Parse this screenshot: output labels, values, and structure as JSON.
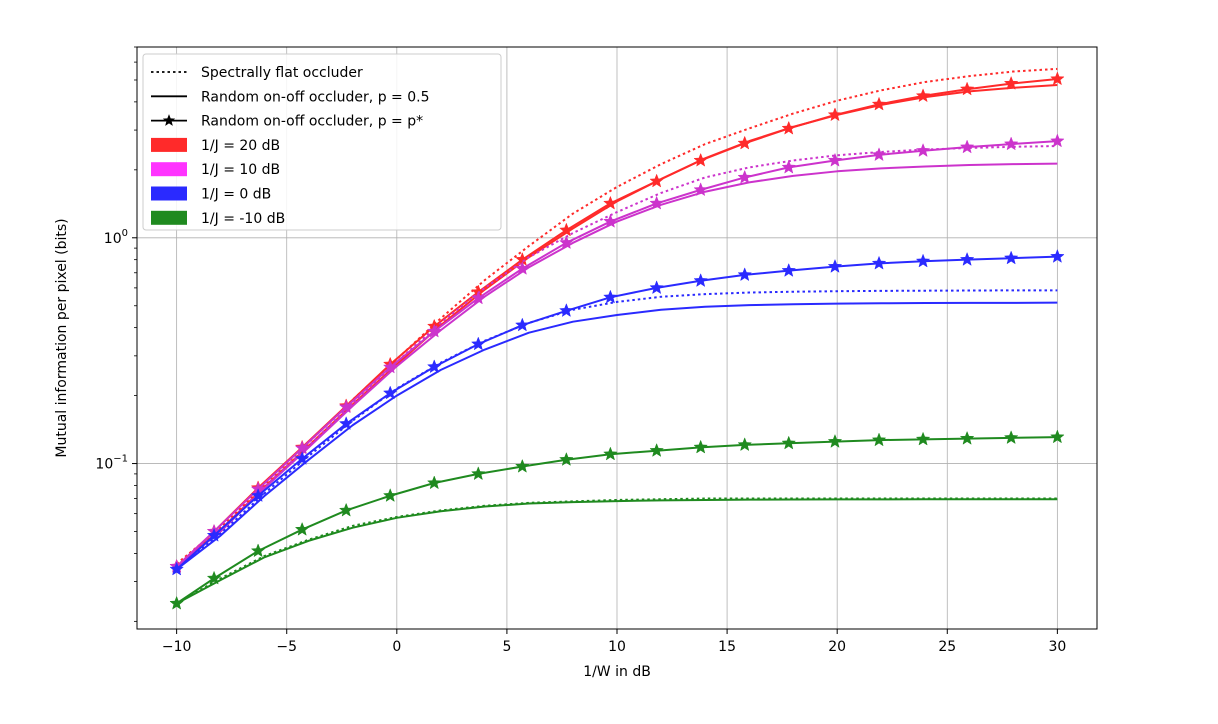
{
  "chart_data": {
    "type": "line",
    "title": "",
    "xlabel": "1/W in dB",
    "ylabel": "Mutual information per pixel (bits)",
    "xlim": [
      -11.8,
      31.8
    ],
    "ylim": [
      0.0185,
      7.0
    ],
    "yscale": "log",
    "grid": true,
    "legend_position": "top-left",
    "x_ticks": [
      -10,
      -5,
      0,
      5,
      10,
      15,
      20,
      25,
      30
    ],
    "x_tick_labels": [
      "−10",
      "−5",
      "0",
      "5",
      "10",
      "15",
      "20",
      "25",
      "30"
    ],
    "y_ticks": [
      0.1,
      1
    ],
    "y_tick_labels": [
      {
        "base": "10",
        "exp": "−1"
      },
      {
        "base": "10",
        "exp": "0"
      }
    ],
    "legend": {
      "styles": [
        {
          "label": "Spectrally flat occluder",
          "style": "dotted"
        },
        {
          "label": "Random on-off occluder, p = 0.5",
          "style": "solid"
        },
        {
          "label": "Random on-off occluder, p = p*",
          "style": "star"
        }
      ],
      "colors": [
        {
          "label": "1/J = 20 dB",
          "color": "#ff2a2a"
        },
        {
          "label": "1/J = 10 dB",
          "color": "#ff33ff"
        },
        {
          "label": "1/J = 0 dB",
          "color": "#2a2aff"
        },
        {
          "label": "1/J = -10 dB",
          "color": "#1f8a1f"
        }
      ]
    },
    "series": [
      {
        "group": "1/J = 20 dB",
        "style": "dotted",
        "color": "#ff2a2a",
        "x": [
          -10,
          -8,
          -6,
          -4,
          -2,
          0,
          2,
          4,
          6,
          8,
          10,
          12,
          14,
          16,
          18,
          20,
          22,
          24,
          26,
          28,
          30
        ],
        "y": [
          0.036,
          0.052,
          0.081,
          0.124,
          0.192,
          0.29,
          0.44,
          0.65,
          0.92,
          1.28,
          1.68,
          2.12,
          2.6,
          3.05,
          3.55,
          4.05,
          4.5,
          4.9,
          5.2,
          5.45,
          5.6
        ]
      },
      {
        "group": "1/J = 20 dB",
        "style": "solid",
        "color": "#ff2a2a",
        "x": [
          -10,
          -8,
          -6,
          -4,
          -2,
          0,
          2,
          4,
          6,
          8,
          10,
          12,
          14,
          16,
          18,
          20,
          22,
          24,
          26,
          28,
          30
        ],
        "y": [
          0.035,
          0.051,
          0.079,
          0.12,
          0.183,
          0.275,
          0.41,
          0.59,
          0.82,
          1.1,
          1.45,
          1.82,
          2.25,
          2.68,
          3.1,
          3.5,
          3.88,
          4.2,
          4.45,
          4.62,
          4.75
        ]
      },
      {
        "group": "1/J = 20 dB",
        "style": "star",
        "color": "#ff2a2a",
        "x": [
          -10,
          -8.3,
          -6.3,
          -4.3,
          -2.3,
          -0.3,
          1.7,
          3.7,
          5.7,
          7.7,
          9.7,
          11.8,
          13.8,
          15.8,
          17.8,
          19.9,
          21.9,
          23.9,
          25.9,
          27.9,
          30
        ],
        "y": [
          0.035,
          0.05,
          0.078,
          0.118,
          0.18,
          0.275,
          0.405,
          0.575,
          0.8,
          1.08,
          1.42,
          1.78,
          2.2,
          2.62,
          3.05,
          3.5,
          3.9,
          4.25,
          4.55,
          4.82,
          5.05
        ]
      },
      {
        "group": "1/J = 10 dB",
        "style": "dotted",
        "color": "#cc33cc",
        "x": [
          -10,
          -8,
          -6,
          -4,
          -2,
          0,
          2,
          4,
          6,
          8,
          10,
          12,
          14,
          16,
          18,
          20,
          22,
          24,
          26,
          28,
          30
        ],
        "y": [
          0.035,
          0.051,
          0.079,
          0.12,
          0.185,
          0.282,
          0.42,
          0.6,
          0.82,
          1.05,
          1.3,
          1.58,
          1.85,
          2.05,
          2.2,
          2.32,
          2.4,
          2.46,
          2.5,
          2.53,
          2.55
        ]
      },
      {
        "group": "1/J = 10 dB",
        "style": "solid",
        "color": "#cc33cc",
        "x": [
          -10,
          -8,
          -6,
          -4,
          -2,
          0,
          2,
          4,
          6,
          8,
          10,
          12,
          14,
          16,
          18,
          20,
          22,
          24,
          26,
          28,
          30
        ],
        "y": [
          0.035,
          0.05,
          0.078,
          0.118,
          0.18,
          0.27,
          0.39,
          0.55,
          0.74,
          0.95,
          1.18,
          1.4,
          1.6,
          1.76,
          1.88,
          1.97,
          2.03,
          2.07,
          2.1,
          2.12,
          2.13
        ]
      },
      {
        "group": "1/J = 10 dB",
        "style": "star",
        "color": "#cc33cc",
        "x": [
          -10,
          -8.3,
          -6.3,
          -4.3,
          -2.3,
          -0.3,
          1.7,
          3.7,
          5.7,
          7.7,
          9.7,
          11.8,
          13.8,
          15.8,
          17.8,
          19.9,
          21.9,
          23.9,
          25.9,
          27.9,
          30
        ],
        "y": [
          0.035,
          0.05,
          0.077,
          0.117,
          0.178,
          0.267,
          0.385,
          0.54,
          0.73,
          0.95,
          1.18,
          1.42,
          1.63,
          1.85,
          2.05,
          2.2,
          2.33,
          2.43,
          2.52,
          2.6,
          2.68
        ]
      },
      {
        "group": "1/J = 0 dB",
        "style": "dotted",
        "color": "#2a2aff",
        "x": [
          -10,
          -8,
          -6,
          -4,
          -2,
          0,
          2,
          4,
          6,
          8,
          10,
          12,
          14,
          16,
          18,
          20,
          22,
          24,
          26,
          28,
          30
        ],
        "y": [
          0.034,
          0.049,
          0.074,
          0.108,
          0.155,
          0.215,
          0.28,
          0.35,
          0.42,
          0.48,
          0.52,
          0.548,
          0.563,
          0.572,
          0.577,
          0.58,
          0.582,
          0.583,
          0.584,
          0.585,
          0.585
        ]
      },
      {
        "group": "1/J = 0 dB",
        "style": "solid",
        "color": "#2a2aff",
        "x": [
          -10,
          -8,
          -6,
          -4,
          -2,
          0,
          2,
          4,
          6,
          8,
          10,
          12,
          14,
          16,
          18,
          20,
          22,
          24,
          26,
          28,
          30
        ],
        "y": [
          0.034,
          0.048,
          0.072,
          0.104,
          0.148,
          0.2,
          0.26,
          0.32,
          0.38,
          0.425,
          0.455,
          0.48,
          0.495,
          0.503,
          0.508,
          0.511,
          0.513,
          0.514,
          0.515,
          0.515,
          0.516
        ]
      },
      {
        "group": "1/J = 0 dB",
        "style": "star",
        "color": "#2a2aff",
        "x": [
          -10,
          -8.3,
          -6.3,
          -4.3,
          -2.3,
          -0.3,
          1.7,
          3.7,
          5.7,
          7.7,
          9.7,
          11.8,
          13.8,
          15.8,
          17.8,
          19.9,
          21.9,
          23.9,
          25.9,
          27.9,
          30
        ],
        "y": [
          0.034,
          0.048,
          0.072,
          0.105,
          0.15,
          0.205,
          0.268,
          0.338,
          0.41,
          0.475,
          0.545,
          0.6,
          0.645,
          0.685,
          0.715,
          0.745,
          0.77,
          0.787,
          0.8,
          0.812,
          0.825
        ]
      },
      {
        "group": "1/J = -10 dB",
        "style": "dotted",
        "color": "#1f8a1f",
        "x": [
          -10,
          -8,
          -6,
          -4,
          -2,
          0,
          2,
          4,
          6,
          8,
          10,
          12,
          14,
          16,
          18,
          20,
          22,
          24,
          26,
          28,
          30
        ],
        "y": [
          0.024,
          0.031,
          0.039,
          0.046,
          0.053,
          0.058,
          0.062,
          0.065,
          0.067,
          0.068,
          0.069,
          0.0695,
          0.07,
          0.07,
          0.07,
          0.07,
          0.07,
          0.07,
          0.07,
          0.07,
          0.07
        ]
      },
      {
        "group": "1/J = -10 dB",
        "style": "solid",
        "color": "#1f8a1f",
        "x": [
          -10,
          -8,
          -6,
          -4,
          -2,
          0,
          2,
          4,
          6,
          8,
          10,
          12,
          14,
          16,
          18,
          20,
          22,
          24,
          26,
          28,
          30
        ],
        "y": [
          0.024,
          0.0305,
          0.0385,
          0.0455,
          0.052,
          0.0575,
          0.0615,
          0.0645,
          0.0665,
          0.0675,
          0.0682,
          0.0687,
          0.069,
          0.0692,
          0.0693,
          0.0694,
          0.0694,
          0.0695,
          0.0695,
          0.0695,
          0.0695
        ]
      },
      {
        "group": "1/J = -10 dB",
        "style": "star",
        "color": "#1f8a1f",
        "x": [
          -10,
          -8.3,
          -6.3,
          -4.3,
          -2.3,
          -0.3,
          1.7,
          3.7,
          5.7,
          7.7,
          9.7,
          11.8,
          13.8,
          15.8,
          17.8,
          19.9,
          21.9,
          23.9,
          25.9,
          27.9,
          30
        ],
        "y": [
          0.024,
          0.031,
          0.041,
          0.051,
          0.062,
          0.072,
          0.082,
          0.09,
          0.097,
          0.104,
          0.11,
          0.114,
          0.118,
          0.121,
          0.123,
          0.125,
          0.127,
          0.128,
          0.129,
          0.13,
          0.131
        ]
      }
    ]
  }
}
